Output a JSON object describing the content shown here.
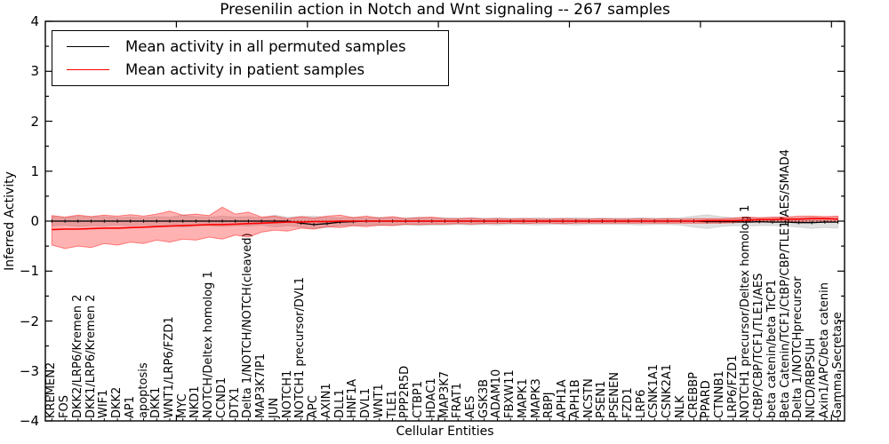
{
  "title": "Presenilin action in Notch and Wnt signaling -- 267 samples",
  "legend": [
    {
      "label": "Mean activity in all permuted samples",
      "color": "#000000"
    },
    {
      "label": "Mean activity in patient samples",
      "color": "#ff0000"
    }
  ],
  "y_axis": {
    "label": "Inferred Activity",
    "tick_labels": [
      "4",
      "3",
      "2",
      "1",
      "0",
      "−1",
      "−2",
      "−3",
      "−4"
    ],
    "tick_values": [
      4,
      3,
      2,
      1,
      0,
      -1,
      -2,
      -3,
      -4
    ],
    "minor_step": 0.5
  },
  "x_axis": {
    "label": "Cellular Entities",
    "major_ticks": [
      10,
      20,
      30,
      40,
      50,
      60
    ]
  },
  "chart_data": {
    "type": "line",
    "title": "Presenilin action in Notch and Wnt signaling -- 267 samples",
    "xlabel": "Cellular Entities",
    "ylabel": "Inferred Activity",
    "ylim": [
      -4,
      4
    ],
    "xlim": [
      0,
      61
    ],
    "grid": false,
    "legend_position": "upper left",
    "categories": [
      "KREMEN2",
      "FOS",
      "DKK2/LRP6/Kremen 2",
      "DKK1/LRP6/Kremen 2",
      "WIF1",
      "DKK2",
      "AP1",
      "apoptosis",
      "DKK1",
      "WNT1/LRP6/FZD1",
      "MYC",
      "NKD1",
      "NOTCH/Deltex homolog 1",
      "CCND1",
      "DTX1",
      "Delta 1/NOTCH/NOTCH(cleaved)",
      "MAP3K7IP1",
      "JUN",
      "NOTCH1",
      "NOTCH1 precursor/DVL1",
      "APC",
      "AXIN1",
      "DLL1",
      "HNF1A",
      "DVL1",
      "WNT1",
      "TLE1",
      "PPP2R5D",
      "CTBP1",
      "HDAC1",
      "MAP3K7",
      "FRAT1",
      "AES",
      "GSK3B",
      "ADAM10",
      "FBXW11",
      "MAPK1",
      "MAPK3",
      "RBPJ",
      "APH1A",
      "APH1B",
      "NCSTN",
      "PSEN1",
      "PSENEN",
      "FZD1",
      "LRP6",
      "CSNK1A1",
      "CSNK2A1",
      "NLK",
      "CREBBP",
      "PPARD",
      "CTNNB1",
      "LRP6/FZD1",
      "NOTCH1 precursor/Deltex homolog 1",
      "CtBP/CBP/TCF1/TLE1/AES",
      "beta catenin/beta TrCP1",
      "Beta Catenin/TCF1/CtBP/CBP/TLE1/AES/SMAD4",
      "Delta 1/NOTCHprecursor",
      "NICD/RBPSUH",
      "Axin1/APC/beta catenin",
      "Gamma Secretase"
    ],
    "series": [
      {
        "name": "Mean activity in all permuted samples",
        "color": "#000000",
        "line_width": 1.3,
        "band_fill": "rgba(0,0,0,0.12)",
        "band_edge": "rgba(0,0,0,0.10)",
        "values": [
          0,
          0,
          0,
          0,
          0,
          0,
          0,
          0,
          0,
          0,
          0,
          0,
          0,
          0,
          0,
          0,
          0,
          0,
          0,
          -0.04,
          -0.07,
          -0.05,
          -0.02,
          -0.01,
          0,
          0,
          0,
          0,
          0,
          0,
          0,
          0,
          0,
          0,
          0,
          0,
          0,
          0,
          0,
          0,
          0,
          0,
          0,
          0,
          0,
          0,
          0,
          0,
          0,
          0,
          -0.01,
          -0.01,
          -0.01,
          -0.02,
          -0.01,
          -0.02,
          -0.02,
          -0.03,
          -0.03,
          -0.02,
          -0.02
        ],
        "band_upper": [
          0.09,
          0.07,
          0.1,
          0.08,
          0.09,
          0.07,
          0.08,
          0.07,
          0.09,
          0.08,
          0.12,
          0.09,
          0.08,
          0.1,
          0.08,
          0.09,
          0.07,
          0.12,
          0.08,
          0.09,
          0.1,
          0.08,
          0.07,
          0.08,
          0.07,
          0.08,
          0.07,
          0.07,
          0.08,
          0.07,
          0.07,
          0.06,
          0.07,
          0.06,
          0.07,
          0.06,
          0.06,
          0.07,
          0.06,
          0.06,
          0.07,
          0.06,
          0.06,
          0.06,
          0.06,
          0.07,
          0.06,
          0.06,
          0.07,
          0.1,
          0.13,
          0.09,
          0.07,
          0.08,
          0.07,
          0.07,
          0.08,
          0.07,
          0.08,
          0.07,
          0.08
        ],
        "band_lower": [
          -0.1,
          -0.08,
          -0.11,
          -0.09,
          -0.1,
          -0.08,
          -0.09,
          -0.08,
          -0.1,
          -0.09,
          -0.12,
          -0.1,
          -0.09,
          -0.11,
          -0.09,
          -0.1,
          -0.08,
          -0.12,
          -0.09,
          -0.12,
          -0.15,
          -0.13,
          -0.09,
          -0.09,
          -0.08,
          -0.09,
          -0.08,
          -0.08,
          -0.09,
          -0.08,
          -0.08,
          -0.07,
          -0.08,
          -0.07,
          -0.08,
          -0.07,
          -0.07,
          -0.08,
          -0.07,
          -0.07,
          -0.08,
          -0.07,
          -0.07,
          -0.07,
          -0.07,
          -0.08,
          -0.07,
          -0.07,
          -0.08,
          -0.12,
          -0.15,
          -0.11,
          -0.09,
          -0.1,
          -0.09,
          -0.09,
          -0.1,
          -0.12,
          -0.15,
          -0.13,
          -0.14
        ]
      },
      {
        "name": "Mean activity in patient samples",
        "color": "#ff0000",
        "line_width": 1.6,
        "band_fill": "rgba(255,0,0,0.30)",
        "band_edge": "rgba(255,0,0,0.45)",
        "values": [
          -0.17,
          -0.16,
          -0.16,
          -0.15,
          -0.14,
          -0.14,
          -0.13,
          -0.12,
          -0.11,
          -0.1,
          -0.09,
          -0.08,
          -0.07,
          -0.07,
          -0.06,
          -0.05,
          -0.04,
          -0.03,
          -0.02,
          -0.02,
          -0.01,
          -0.01,
          0,
          0,
          0,
          0,
          0,
          0,
          0,
          0,
          0,
          0,
          0,
          0,
          0,
          0,
          0,
          0,
          0,
          0,
          0,
          0,
          0,
          0,
          0,
          0,
          0,
          0,
          0,
          0,
          0.01,
          0.01,
          0.01,
          0.02,
          0.03,
          0.03,
          0.04,
          0.04,
          0.05,
          0.05,
          0.04
        ],
        "band_upper": [
          0.11,
          0.08,
          0.12,
          0.09,
          0.12,
          0.1,
          0.13,
          0.1,
          0.14,
          0.2,
          0.12,
          0.14,
          0.11,
          0.28,
          0.14,
          0.18,
          0.08,
          0.1,
          0.05,
          0.09,
          0.06,
          0.1,
          0.12,
          0.07,
          0.1,
          0.06,
          0.09,
          0.05,
          0.07,
          0.08,
          0.05,
          0.05,
          0.06,
          0.04,
          0.05,
          0.04,
          0.05,
          0.04,
          0.04,
          0.05,
          0.04,
          0.04,
          0.05,
          0.04,
          0.04,
          0.05,
          0.04,
          0.05,
          0.04,
          0.05,
          0.05,
          0.05,
          0.06,
          0.08,
          0.07,
          0.08,
          0.08,
          0.1,
          0.1,
          0.09,
          0.1
        ],
        "band_lower": [
          -0.48,
          -0.55,
          -0.5,
          -0.53,
          -0.45,
          -0.48,
          -0.42,
          -0.45,
          -0.38,
          -0.42,
          -0.36,
          -0.38,
          -0.32,
          -0.36,
          -0.28,
          -0.32,
          -0.22,
          -0.18,
          -0.2,
          -0.14,
          -0.16,
          -0.11,
          -0.13,
          -0.09,
          -0.11,
          -0.08,
          -0.09,
          -0.06,
          -0.07,
          -0.06,
          -0.06,
          -0.05,
          -0.06,
          -0.05,
          -0.05,
          -0.04,
          -0.05,
          -0.04,
          -0.04,
          -0.05,
          -0.04,
          -0.04,
          -0.04,
          -0.04,
          -0.04,
          -0.04,
          -0.04,
          -0.04,
          -0.04,
          -0.04,
          -0.04,
          -0.04,
          -0.03,
          -0.02,
          -0.02,
          -0.02,
          -0.01,
          -0.01,
          0,
          0,
          -0.02
        ]
      }
    ],
    "zero_line": {
      "value": 0,
      "style": "dotted",
      "color": "#000000"
    }
  }
}
